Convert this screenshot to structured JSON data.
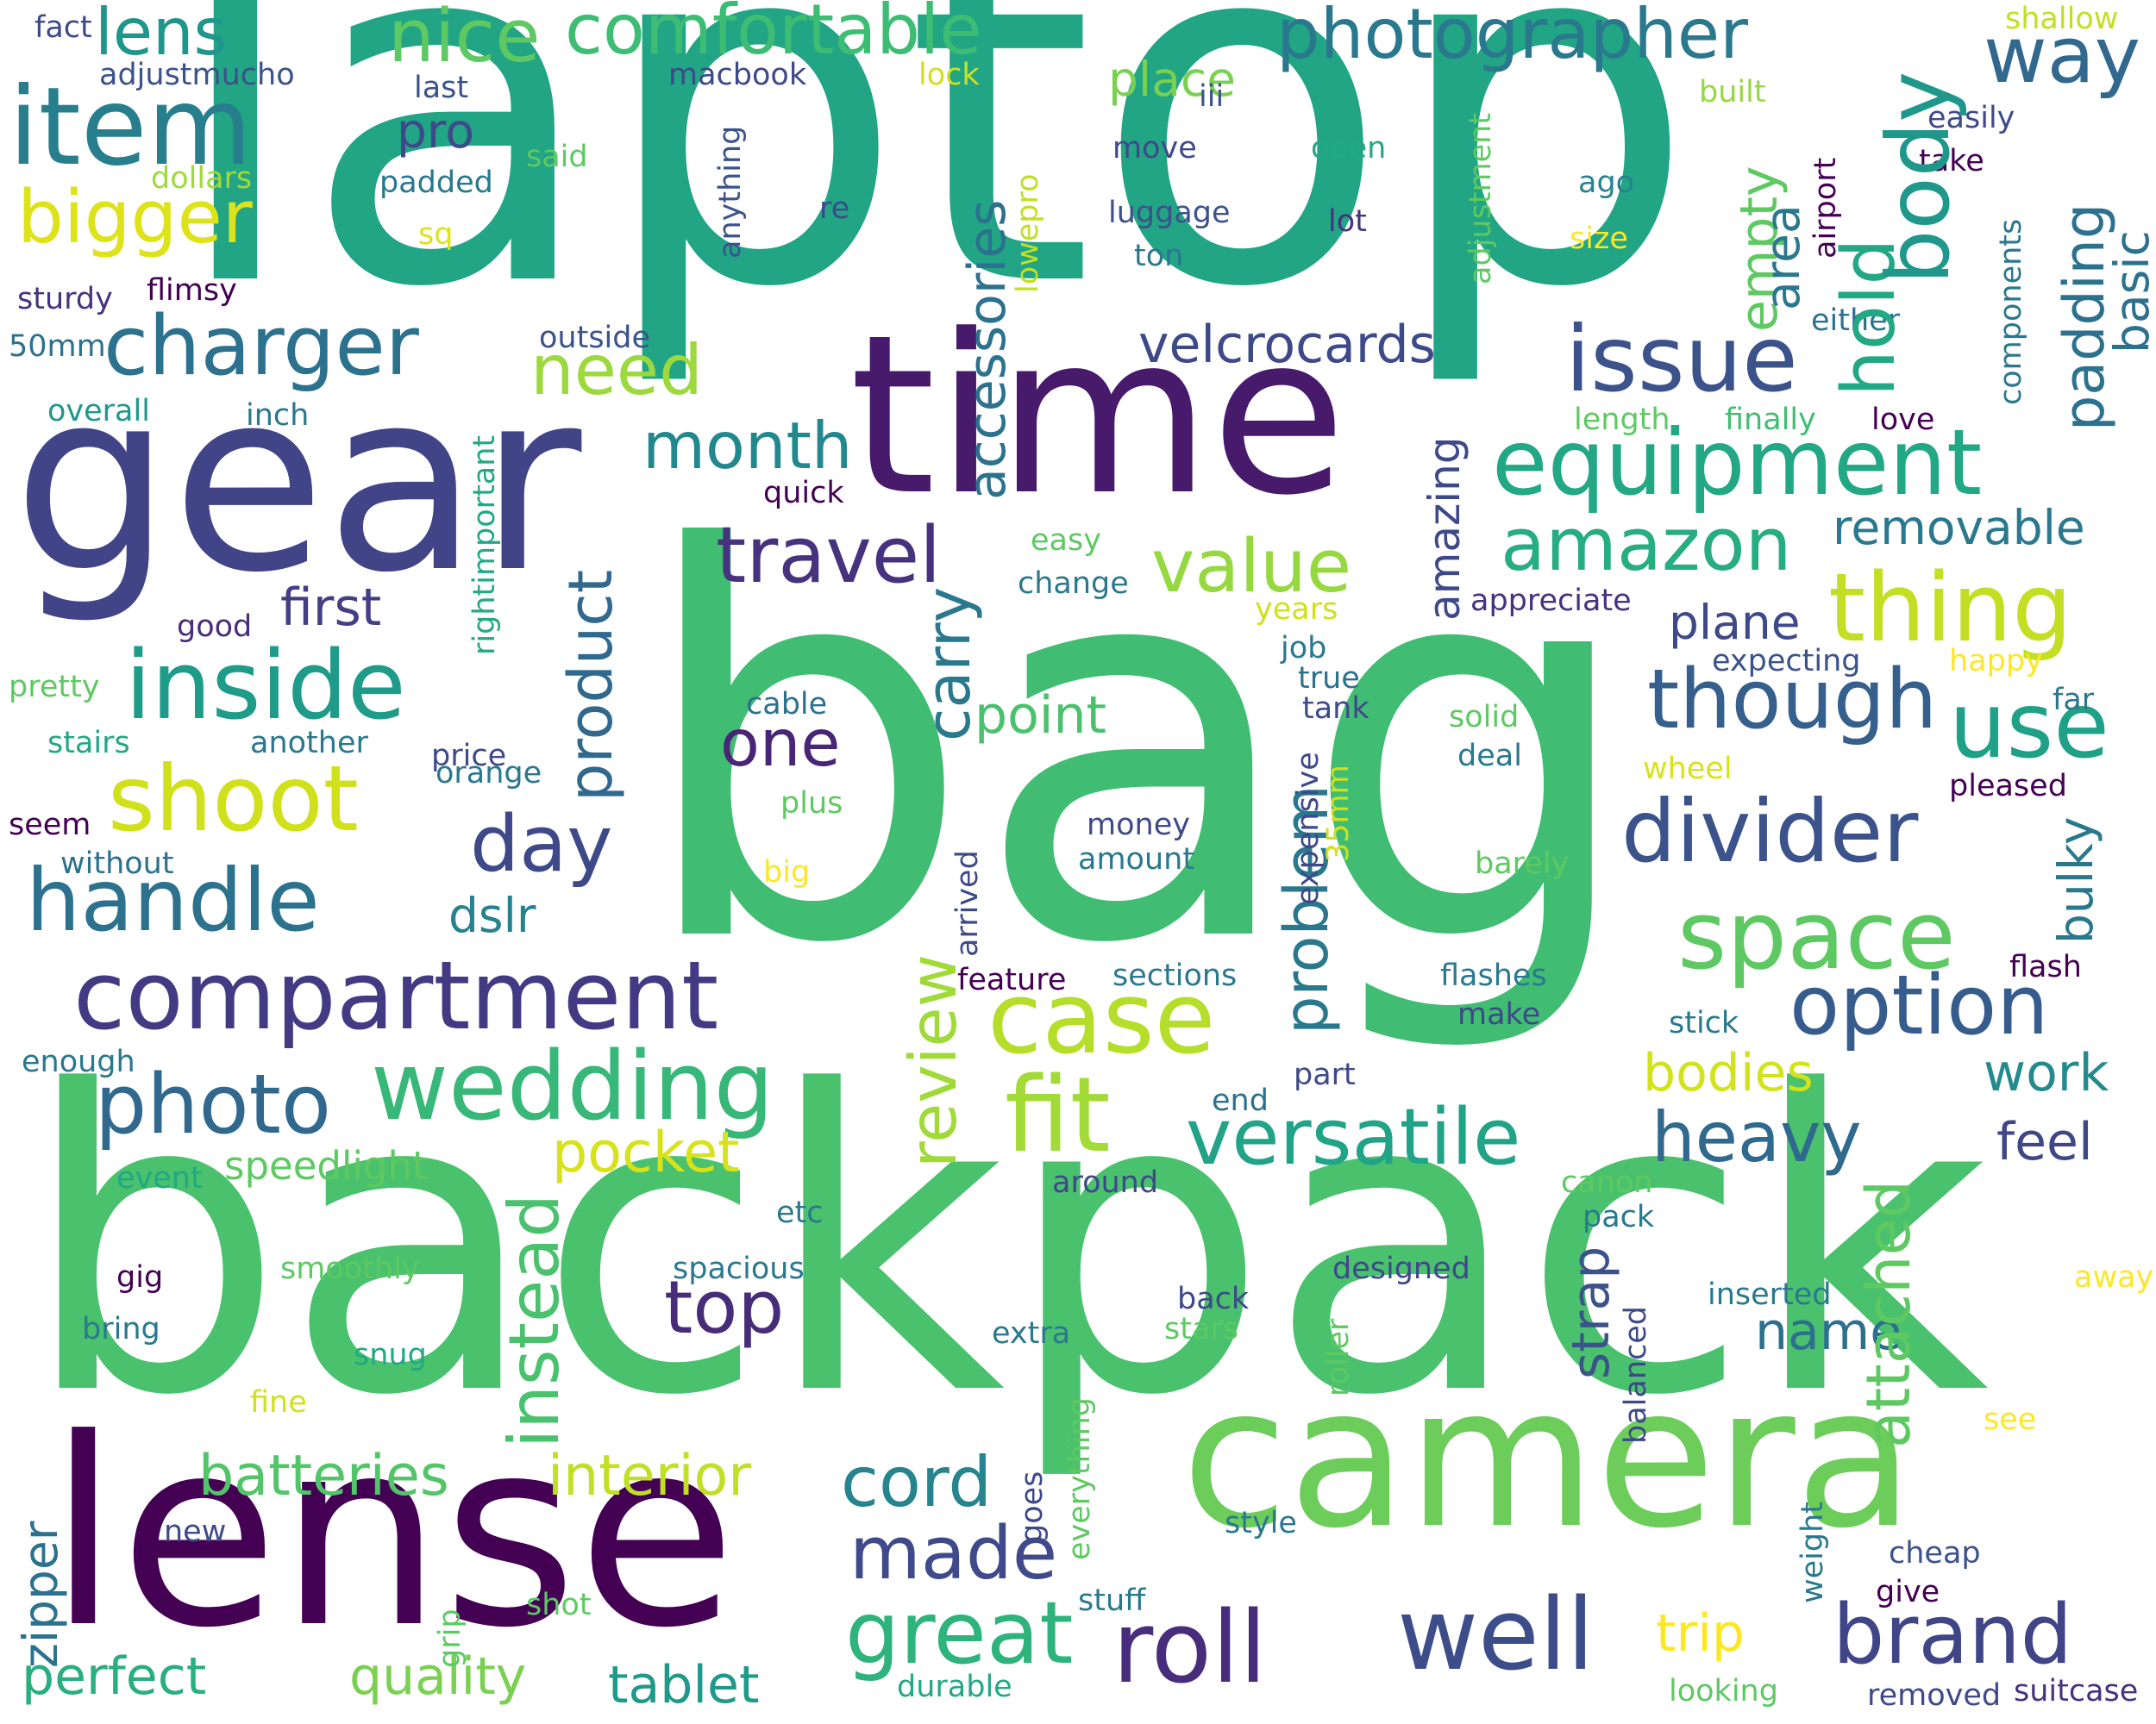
{
  "words": [
    {
      "text": "laptop",
      "color": "#21a585",
      "rot": 0
    },
    {
      "text": "bag",
      "color": "#40bd72",
      "rot": 0
    },
    {
      "text": "backpack",
      "color": "#4ac16d",
      "rot": 0
    },
    {
      "text": "gear",
      "color": "#414487",
      "rot": 0
    },
    {
      "text": "time",
      "color": "#481a6c",
      "rot": 0
    },
    {
      "text": "lense",
      "color": "#440154",
      "rot": 0
    },
    {
      "text": "camera",
      "color": "#6ccd5a",
      "rot": 0
    },
    {
      "text": "item",
      "color": "#277f8e",
      "rot": 0
    },
    {
      "text": "lens",
      "color": "#1f968b",
      "rot": 0
    },
    {
      "text": "nice",
      "color": "#5ec962",
      "rot": 0
    },
    {
      "text": "comfortable",
      "color": "#3dbc74",
      "rot": 0
    },
    {
      "text": "photographer",
      "color": "#2a788e",
      "rot": 0
    },
    {
      "text": "way",
      "color": "#31688e",
      "rot": 0
    },
    {
      "text": "bigger",
      "color": "#dde318",
      "rot": 0
    },
    {
      "text": "charger",
      "color": "#2c718e",
      "rot": 0
    },
    {
      "text": "issue",
      "color": "#3b528b",
      "rot": 0
    },
    {
      "text": "equipment",
      "color": "#22a884",
      "rot": 0
    },
    {
      "text": "need",
      "color": "#9bd93c",
      "rot": 0
    },
    {
      "text": "month",
      "color": "#23888e",
      "rot": 0
    },
    {
      "text": "travel",
      "color": "#46327e",
      "rot": 0
    },
    {
      "text": "value",
      "color": "#95d840",
      "rot": 0
    },
    {
      "text": "amazon",
      "color": "#26ad81",
      "rot": 0
    },
    {
      "text": "thing",
      "color": "#c2df23",
      "rot": 0
    },
    {
      "text": "inside",
      "color": "#1e9c89",
      "rot": 0
    },
    {
      "text": "first",
      "color": "#433e85",
      "rot": 0
    },
    {
      "text": "shoot",
      "color": "#d0e11c",
      "rot": 0
    },
    {
      "text": "one",
      "color": "#482576",
      "rot": 0
    },
    {
      "text": "though",
      "color": "#355f8d",
      "rot": 0
    },
    {
      "text": "use",
      "color": "#1fa187",
      "rot": 0
    },
    {
      "text": "handle",
      "color": "#2c728e",
      "rot": 0
    },
    {
      "text": "day",
      "color": "#3e4989",
      "rot": 0
    },
    {
      "text": "divider",
      "color": "#3b528b",
      "rot": 0
    },
    {
      "text": "space",
      "color": "#5ec962",
      "rot": 0
    },
    {
      "text": "compartment",
      "color": "#443983",
      "rot": 0
    },
    {
      "text": "case",
      "color": "#b5de2b",
      "rot": 0
    },
    {
      "text": "option",
      "color": "#365c8d",
      "rot": 0
    },
    {
      "text": "photo",
      "color": "#31688e",
      "rot": 0
    },
    {
      "text": "wedding",
      "color": "#37b878",
      "rot": 0
    },
    {
      "text": "fit",
      "color": "#a2da37",
      "rot": 0
    },
    {
      "text": "versatile",
      "color": "#20a386",
      "rot": 0
    },
    {
      "text": "heavy",
      "color": "#30698e",
      "rot": 0
    },
    {
      "text": "feel",
      "color": "#3f4788",
      "rot": 0
    },
    {
      "text": "work",
      "color": "#238a8d",
      "rot": 0
    },
    {
      "text": "top",
      "color": "#472c7a",
      "rot": 0
    },
    {
      "text": "name",
      "color": "#2d708e",
      "rot": 0
    },
    {
      "text": "pocket",
      "color": "#d8e219",
      "rot": 0
    },
    {
      "text": "cord",
      "color": "#25848e",
      "rot": 0
    },
    {
      "text": "made",
      "color": "#3e4a89",
      "rot": 0
    },
    {
      "text": "great",
      "color": "#2eb37c",
      "rot": 0
    },
    {
      "text": "roll",
      "color": "#472d7b",
      "rot": 0
    },
    {
      "text": "well",
      "color": "#3d4d8a",
      "rot": 0
    },
    {
      "text": "brand",
      "color": "#404588",
      "rot": 0
    },
    {
      "text": "batteries",
      "color": "#52c569",
      "rot": 0
    },
    {
      "text": "interior",
      "color": "#c0df25",
      "rot": 0
    },
    {
      "text": "perfect",
      "color": "#29af7f",
      "rot": 0
    },
    {
      "text": "quality",
      "color": "#7ad151",
      "rot": 0
    },
    {
      "text": "tablet",
      "color": "#1f998a",
      "rot": 0
    },
    {
      "text": "trip",
      "color": "#fde725",
      "rot": 0
    },
    {
      "text": "bodies",
      "color": "#d2e21b",
      "rot": 0
    },
    {
      "text": "velcrocards",
      "color": "#3e4989",
      "rot": 0
    },
    {
      "text": "point",
      "color": "#4ac16d",
      "rot": 0
    },
    {
      "text": "dslr",
      "color": "#26828e",
      "rot": 0
    },
    {
      "text": "plane",
      "color": "#3e4989",
      "rot": 0
    },
    {
      "text": "removable",
      "color": "#2a788e",
      "rot": 0
    },
    {
      "text": "speedlight",
      "color": "#5ec962",
      "rot": 0
    },
    {
      "text": "fact",
      "color": "#3e4989",
      "rot": 0
    },
    {
      "text": "adjustmucho",
      "color": "#3b528b",
      "rot": 0
    },
    {
      "text": "last",
      "color": "#3b528b",
      "rot": 0
    },
    {
      "text": "pro",
      "color": "#3e4989",
      "rot": 0
    },
    {
      "text": "padded",
      "color": "#2a788e",
      "rot": 0
    },
    {
      "text": "dollars",
      "color": "#a0da39",
      "rot": 0
    },
    {
      "text": "said",
      "color": "#5ec962",
      "rot": 0
    },
    {
      "text": "sq",
      "color": "#dde318",
      "rot": 0
    },
    {
      "text": "sturdy",
      "color": "#46327e",
      "rot": 0
    },
    {
      "text": "flimsy",
      "color": "#440154",
      "rot": 0
    },
    {
      "text": "50mm",
      "color": "#2c718e",
      "rot": 0
    },
    {
      "text": "overall",
      "color": "#1f988b",
      "rot": 0
    },
    {
      "text": "inch",
      "color": "#2a788e",
      "rot": 0
    },
    {
      "text": "outside",
      "color": "#3b528b",
      "rot": 0
    },
    {
      "text": "macbook",
      "color": "#3e4989",
      "rot": 0
    },
    {
      "text": "lock",
      "color": "#d0e11c",
      "rot": 0
    },
    {
      "text": "place",
      "color": "#7ad151",
      "rot": 0
    },
    {
      "text": "iii",
      "color": "#3b528b",
      "rot": 0
    },
    {
      "text": "move",
      "color": "#3e4989",
      "rot": 0
    },
    {
      "text": "luggage",
      "color": "#3b528b",
      "rot": 0
    },
    {
      "text": "ton",
      "color": "#2a788e",
      "rot": 0
    },
    {
      "text": "open",
      "color": "#22a884",
      "rot": 0
    },
    {
      "text": "lot",
      "color": "#46327e",
      "rot": 0
    },
    {
      "text": "ago",
      "color": "#26828e",
      "rot": 0
    },
    {
      "text": "size",
      "color": "#fde725",
      "rot": 0
    },
    {
      "text": "built",
      "color": "#95d840",
      "rot": 0
    },
    {
      "text": "easily",
      "color": "#3e4989",
      "rot": 0
    },
    {
      "text": "take",
      "color": "#440154",
      "rot": 0
    },
    {
      "text": "shallow",
      "color": "#c2df23",
      "rot": 0
    },
    {
      "text": "either",
      "color": "#2c718e",
      "rot": 0
    },
    {
      "text": "length",
      "color": "#5ec962",
      "rot": 0
    },
    {
      "text": "finally",
      "color": "#40bd72",
      "rot": 0
    },
    {
      "text": "love",
      "color": "#440154",
      "rot": 0
    },
    {
      "text": "re",
      "color": "#3e4989",
      "rot": 0
    },
    {
      "text": "quick",
      "color": "#440154",
      "rot": 0
    },
    {
      "text": "easy",
      "color": "#5ec962",
      "rot": 0
    },
    {
      "text": "change",
      "color": "#2a788e",
      "rot": 0
    },
    {
      "text": "good",
      "color": "#472d7b",
      "rot": 0
    },
    {
      "text": "pretty",
      "color": "#5ec962",
      "rot": 0
    },
    {
      "text": "stairs",
      "color": "#22a884",
      "rot": 0
    },
    {
      "text": "another",
      "color": "#2a788e",
      "rot": 0
    },
    {
      "text": "price",
      "color": "#3e4989",
      "rot": 0
    },
    {
      "text": "orange",
      "color": "#2a788e",
      "rot": 0
    },
    {
      "text": "seem",
      "color": "#440154",
      "rot": 0
    },
    {
      "text": "without",
      "color": "#2c718e",
      "rot": 0
    },
    {
      "text": "cable",
      "color": "#2c718e",
      "rot": 0
    },
    {
      "text": "plus",
      "color": "#5ec962",
      "rot": 0
    },
    {
      "text": "big",
      "color": "#fde725",
      "rot": 0
    },
    {
      "text": "money",
      "color": "#3e4989",
      "rot": 0
    },
    {
      "text": "amount",
      "color": "#2a788e",
      "rot": 0
    },
    {
      "text": "appreciate",
      "color": "#46327e",
      "rot": 0
    },
    {
      "text": "years",
      "color": "#d0e11c",
      "rot": 0
    },
    {
      "text": "job",
      "color": "#2a788e",
      "rot": 0
    },
    {
      "text": "true",
      "color": "#2c718e",
      "rot": 0
    },
    {
      "text": "tank",
      "color": "#3e4989",
      "rot": 0
    },
    {
      "text": "expecting",
      "color": "#3b528b",
      "rot": 0
    },
    {
      "text": "happy",
      "color": "#fde725",
      "rot": 0
    },
    {
      "text": "far",
      "color": "#2a788e",
      "rot": 0
    },
    {
      "text": "solid",
      "color": "#5ec962",
      "rot": 0
    },
    {
      "text": "deal",
      "color": "#2a788e",
      "rot": 0
    },
    {
      "text": "wheel",
      "color": "#d8e219",
      "rot": 0
    },
    {
      "text": "pleased",
      "color": "#440154",
      "rot": 0
    },
    {
      "text": "barely",
      "color": "#5ec962",
      "rot": 0
    },
    {
      "text": "flashes",
      "color": "#2a788e",
      "rot": 0
    },
    {
      "text": "make",
      "color": "#3e4989",
      "rot": 0
    },
    {
      "text": "flash",
      "color": "#440154",
      "rot": 0
    },
    {
      "text": "stick",
      "color": "#2a788e",
      "rot": 0
    },
    {
      "text": "feature",
      "color": "#440154",
      "rot": 0
    },
    {
      "text": "sections",
      "color": "#2a788e",
      "rot": 0
    },
    {
      "text": "part",
      "color": "#3e4989",
      "rot": 0
    },
    {
      "text": "end",
      "color": "#2c718e",
      "rot": 0
    },
    {
      "text": "enough",
      "color": "#2a788e",
      "rot": 0
    },
    {
      "text": "around",
      "color": "#3e4989",
      "rot": 0
    },
    {
      "text": "event",
      "color": "#22a884",
      "rot": 0
    },
    {
      "text": "canon",
      "color": "#5ec962",
      "rot": 0
    },
    {
      "text": "pack",
      "color": "#2a788e",
      "rot": 0
    },
    {
      "text": "etc",
      "color": "#2a788e",
      "rot": 0
    },
    {
      "text": "smoothly",
      "color": "#5ec962",
      "rot": 0
    },
    {
      "text": "spacious",
      "color": "#2a788e",
      "rot": 0
    },
    {
      "text": "designed",
      "color": "#3e4989",
      "rot": 0
    },
    {
      "text": "inserted",
      "color": "#2a788e",
      "rot": 0
    },
    {
      "text": "away",
      "color": "#fde725",
      "rot": 0
    },
    {
      "text": "gig",
      "color": "#440154",
      "rot": 0
    },
    {
      "text": "bring",
      "color": "#2a788e",
      "rot": 0
    },
    {
      "text": "snug",
      "color": "#22a884",
      "rot": 0
    },
    {
      "text": "back",
      "color": "#3e4989",
      "rot": 0
    },
    {
      "text": "stars",
      "color": "#5ec962",
      "rot": 0
    },
    {
      "text": "extra",
      "color": "#2a788e",
      "rot": 0
    },
    {
      "text": "see",
      "color": "#fde725",
      "rot": 0
    },
    {
      "text": "new",
      "color": "#3e4989",
      "rot": 0
    },
    {
      "text": "style",
      "color": "#2a788e",
      "rot": 0
    },
    {
      "text": "cheap",
      "color": "#3b528b",
      "rot": 0
    },
    {
      "text": "give",
      "color": "#440154",
      "rot": 0
    },
    {
      "text": "shot",
      "color": "#5ec962",
      "rot": 0
    },
    {
      "text": "stuff",
      "color": "#2a788e",
      "rot": 0
    },
    {
      "text": "durable",
      "color": "#22a884",
      "rot": 0
    },
    {
      "text": "looking",
      "color": "#5ec962",
      "rot": 0
    },
    {
      "text": "removed",
      "color": "#3e4989",
      "rot": 0
    },
    {
      "text": "suitcase",
      "color": "#46327e",
      "rot": 0
    },
    {
      "text": "fine",
      "color": "#d0e11c",
      "rot": 0
    },
    {
      "text": "rightimportant",
      "color": "#22a884",
      "rot": -90
    },
    {
      "text": "anything",
      "color": "#3b528b",
      "rot": -90
    },
    {
      "text": "lowepro",
      "color": "#c2df23",
      "rot": -90
    },
    {
      "text": "adjustment",
      "color": "#5ec962",
      "rot": -90
    },
    {
      "text": "airport",
      "color": "#440154",
      "rot": -90
    },
    {
      "text": "components",
      "color": "#2a788e",
      "rot": -90
    },
    {
      "text": "accessories",
      "color": "#2c718e",
      "rot": -90
    },
    {
      "text": "amazing",
      "color": "#3e4989",
      "rot": -90
    },
    {
      "text": "empty",
      "color": "#5ec962",
      "rot": -90
    },
    {
      "text": "area",
      "color": "#2a788e",
      "rot": -90
    },
    {
      "text": "hold",
      "color": "#22a884",
      "rot": -90
    },
    {
      "text": "body",
      "color": "#1f988b",
      "rot": -90
    },
    {
      "text": "padding",
      "color": "#2c718e",
      "rot": -90
    },
    {
      "text": "basic",
      "color": "#2c718e",
      "rot": -90
    },
    {
      "text": "product",
      "color": "#31688e",
      "rot": -90
    },
    {
      "text": "carry",
      "color": "#2a788e",
      "rot": -90
    },
    {
      "text": "problem",
      "color": "#2a788e",
      "rot": -90
    },
    {
      "text": "review",
      "color": "#a0da39",
      "rot": -90
    },
    {
      "text": "instead",
      "color": "#4ac16d",
      "rot": -90
    },
    {
      "text": "arrived",
      "color": "#3e4989",
      "rot": -90
    },
    {
      "text": "expensive",
      "color": "#3e4989",
      "rot": -90
    },
    {
      "text": "35mm",
      "color": "#d0e11c",
      "rot": -90
    },
    {
      "text": "bulky",
      "color": "#2a788e",
      "rot": -90
    },
    {
      "text": "attached",
      "color": "#5ec962",
      "rot": -90
    },
    {
      "text": "strap",
      "color": "#3b528b",
      "rot": -90
    },
    {
      "text": "balanced",
      "color": "#3e4989",
      "rot": -90
    },
    {
      "text": "roller",
      "color": "#5ec962",
      "rot": -90
    },
    {
      "text": "everything",
      "color": "#5ec962",
      "rot": -90
    },
    {
      "text": "goes",
      "color": "#3e4989",
      "rot": -90
    },
    {
      "text": "zipper",
      "color": "#2c718e",
      "rot": -90
    },
    {
      "text": "grip",
      "color": "#5ec962",
      "rot": -90
    },
    {
      "text": "weight",
      "color": "#2a788e",
      "rot": -90
    }
  ]
}
